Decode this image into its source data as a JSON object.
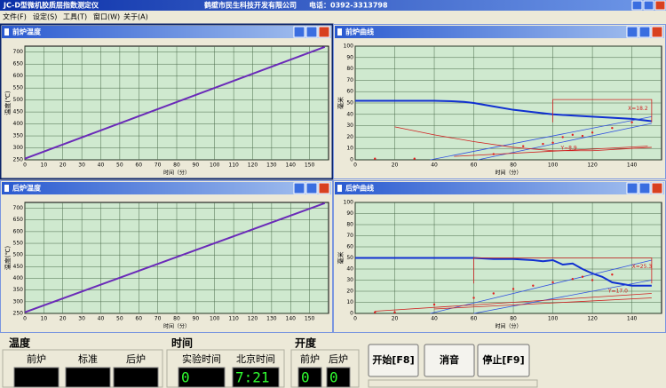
{
  "app": {
    "title": "JC-D型微机胶质层指数测定仪",
    "company": "鹤壁市民生科技开发有限公司",
    "phone": "电话：0392-3313798"
  },
  "menu": [
    "文件(F)",
    "设定(S)",
    "工具(T)",
    "窗口(W)",
    "关于(A)"
  ],
  "windows": [
    {
      "title": "前炉温度",
      "chart_data": {
        "type": "line",
        "x_label": "时间（分）",
        "y_label": "温度(℃)",
        "xlim": [
          0,
          160
        ],
        "ylim": [
          250,
          725
        ],
        "xticks": [
          0,
          10,
          20,
          30,
          40,
          50,
          60,
          70,
          80,
          90,
          100,
          110,
          120,
          130,
          140,
          150
        ],
        "yticks": [
          250,
          300,
          350,
          400,
          450,
          500,
          550,
          600,
          650,
          700
        ],
        "grid": true,
        "series": [
          {
            "color": "#6a2ab8",
            "x": [
              0,
              158
            ],
            "values": [
              255,
              722
            ]
          }
        ],
        "annotations": []
      }
    },
    {
      "title": "前炉曲线",
      "chart_data": {
        "type": "line",
        "x_label": "时间（分）",
        "y_label": "毫米",
        "xlim": [
          0,
          155
        ],
        "ylim": [
          0,
          100
        ],
        "xticks": [
          0,
          20,
          40,
          60,
          80,
          100,
          120,
          140
        ],
        "yticks": [
          0,
          10,
          20,
          30,
          40,
          50,
          60,
          70,
          80,
          90,
          100
        ],
        "grid": true,
        "series": [
          {
            "color": "#1030d0",
            "x": [
              0,
              10,
              20,
              30,
              40,
              50,
              55,
              60,
              70,
              80,
              90,
              100,
              110,
              120,
              130,
              140,
              150
            ],
            "values": [
              52,
              52,
              52,
              52,
              52,
              51.5,
              51,
              50,
              47,
              44,
              42,
              40,
              39,
              38,
              37,
              36,
              34
            ]
          },
          {
            "color": "#3050e0",
            "x": [
              38,
              150
            ],
            "values": [
              0,
              38
            ]
          },
          {
            "color": "#3050e0",
            "x": [
              62,
              150
            ],
            "values": [
              0,
              32
            ]
          },
          {
            "color": "#d02020",
            "x": [
              20,
              40,
              60,
              80,
              100,
              120,
              140,
              150
            ],
            "values": [
              29,
              22,
              16,
              11,
              8,
              8,
              10,
              11
            ]
          },
          {
            "color": "#d02020",
            "x": [
              50,
              148
            ],
            "values": [
              3,
              12
            ]
          },
          {
            "color": "#d02020",
            "x": [
              100,
              100,
              150,
              150
            ],
            "values": [
              33,
              53,
              53,
              33
            ]
          },
          {
            "color": "#e02020",
            "style": "dots",
            "x": [
              10,
              30,
              70,
              85,
              95,
              100,
              105,
              110,
              115,
              120,
              130,
              140
            ],
            "values": [
              1,
              1,
              5,
              12,
              14,
              15,
              20,
              22,
              21,
              24,
              28,
              33
            ]
          }
        ],
        "annotations": [
          "X=18.2",
          "Y=8.9"
        ]
      }
    },
    {
      "title": "后炉温度",
      "chart_data": {
        "type": "line",
        "x_label": "时间（分）",
        "y_label": "温度(℃)",
        "xlim": [
          0,
          160
        ],
        "ylim": [
          250,
          725
        ],
        "xticks": [
          0,
          10,
          20,
          30,
          40,
          50,
          60,
          70,
          80,
          90,
          100,
          110,
          120,
          130,
          140,
          150
        ],
        "yticks": [
          250,
          300,
          350,
          400,
          450,
          500,
          550,
          600,
          650,
          700
        ],
        "grid": true,
        "series": [
          {
            "color": "#6a2ab8",
            "x": [
              0,
              158
            ],
            "values": [
              255,
              722
            ]
          }
        ],
        "annotations": []
      }
    },
    {
      "title": "后炉曲线",
      "chart_data": {
        "type": "line",
        "x_label": "时间（分）",
        "y_label": "毫米",
        "xlim": [
          0,
          155
        ],
        "ylim": [
          0,
          100
        ],
        "xticks": [
          0,
          20,
          40,
          60,
          80,
          100,
          120,
          140
        ],
        "yticks": [
          0,
          10,
          20,
          30,
          40,
          50,
          60,
          70,
          80,
          90,
          100
        ],
        "grid": true,
        "series": [
          {
            "color": "#1030d0",
            "x": [
              0,
              20,
              40,
              60,
              70,
              80,
              90,
              95,
              100,
              105,
              110,
              115,
              120,
              125,
              130,
              140,
              150
            ],
            "values": [
              50,
              50,
              50,
              50,
              49,
              49,
              48,
              47,
              48,
              44,
              45,
              40,
              36,
              33,
              28,
              25,
              25
            ]
          },
          {
            "color": "#3050e0",
            "x": [
              38,
              150
            ],
            "values": [
              0,
              48
            ]
          },
          {
            "color": "#3050e0",
            "x": [
              60,
              150
            ],
            "values": [
              0,
              30
            ]
          },
          {
            "color": "#d02020",
            "x": [
              10,
              150
            ],
            "values": [
              2,
              18
            ]
          },
          {
            "color": "#d02020",
            "x": [
              40,
              150
            ],
            "values": [
              4,
              14
            ]
          },
          {
            "color": "#d02020",
            "x": [
              60,
              60,
              150,
              150
            ],
            "values": [
              27,
              50,
              50,
              27
            ]
          },
          {
            "color": "#e02020",
            "style": "dots",
            "x": [
              10,
              20,
              40,
              60,
              70,
              80,
              90,
              100,
              110,
              115,
              120,
              130
            ],
            "values": [
              1,
              1,
              8,
              14,
              18,
              22,
              25,
              28,
              31,
              33,
              30,
              35
            ]
          }
        ],
        "annotations": [
          "X=25.3",
          "Y=17.0"
        ]
      }
    }
  ],
  "status": {
    "temperature": {
      "title": "温度",
      "labels": [
        "前炉",
        "标准",
        "后炉"
      ]
    },
    "time": {
      "title": "时间",
      "labels": [
        "实验时间",
        "北京时间"
      ],
      "values": [
        0,
        "7:21"
      ]
    },
    "opening": {
      "title": "开度",
      "labels": [
        "前炉",
        "后炉"
      ],
      "values": [
        0,
        0
      ]
    },
    "buttons": [
      "开始[F8]",
      "消音",
      "停止[F9]"
    ]
  }
}
